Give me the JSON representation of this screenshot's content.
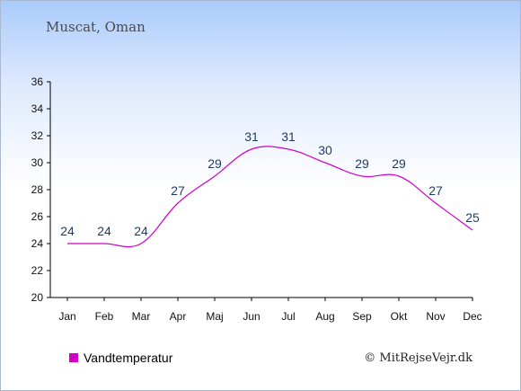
{
  "title": "Muscat, Oman",
  "credit": "© MitRejseVejr.dk",
  "legend": {
    "label": "Vandtemperatur",
    "color": "#d000c8"
  },
  "chart_data": {
    "type": "line",
    "categories": [
      "Jan",
      "Feb",
      "Mar",
      "Apr",
      "Maj",
      "Jun",
      "Jul",
      "Aug",
      "Sep",
      "Okt",
      "Nov",
      "Dec"
    ],
    "series": [
      {
        "name": "Vandtemperatur",
        "color": "#d000c8",
        "values": [
          24,
          24,
          24,
          27,
          29,
          31,
          31,
          30,
          29,
          29,
          27,
          25
        ]
      }
    ],
    "ylim": [
      20,
      36
    ],
    "yticks": [
      20,
      22,
      24,
      26,
      28,
      30,
      32,
      34,
      36
    ],
    "grid": false,
    "legend_position": "bottom-left"
  }
}
